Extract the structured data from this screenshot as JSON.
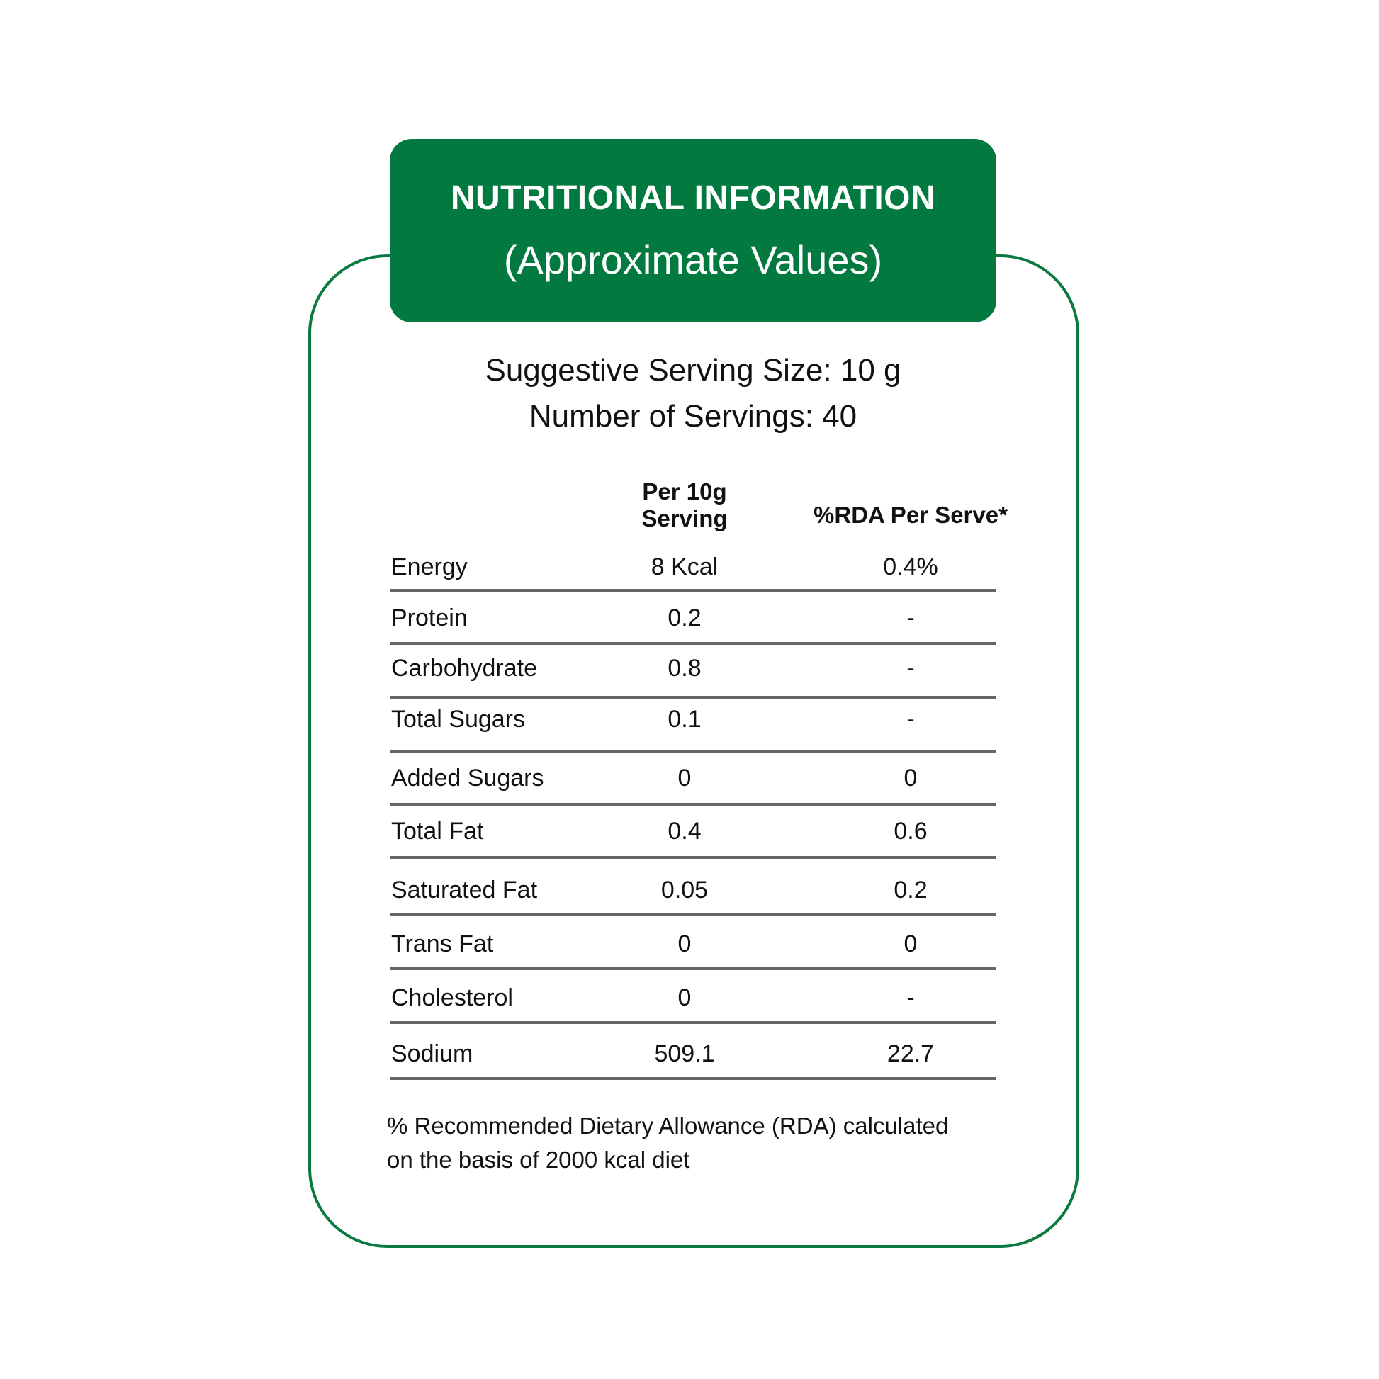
{
  "header": {
    "title": "NUTRITIONAL INFORMATION",
    "subtitle": "(Approximate Values)"
  },
  "serving": {
    "size": "Suggestive Serving Size: 10 g",
    "count": "Number of Servings: 40"
  },
  "table": {
    "columns": [
      "",
      "Per 10g\nServing",
      "%RDA Per Serve*"
    ],
    "col1_line1": "Per 10g",
    "col1_line2": "Serving",
    "col2": "%RDA Per Serve*",
    "rows": [
      {
        "nutrient": "Energy",
        "per_serving": "8 Kcal",
        "rda": "0.4%"
      },
      {
        "nutrient": "Protein",
        "per_serving": "0.2",
        "rda": "-"
      },
      {
        "nutrient": "Carbohydrate",
        "per_serving": "0.8",
        "rda": "-"
      },
      {
        "nutrient": "Total Sugars",
        "per_serving": "0.1",
        "rda": "-"
      },
      {
        "nutrient": "Added Sugars",
        "per_serving": "0",
        "rda": "0"
      },
      {
        "nutrient": "Total Fat",
        "per_serving": "0.4",
        "rda": "0.6"
      },
      {
        "nutrient": "Saturated Fat",
        "per_serving": "0.05",
        "rda": "0.2"
      },
      {
        "nutrient": "Trans Fat",
        "per_serving": "0",
        "rda": "0"
      },
      {
        "nutrient": "Cholesterol",
        "per_serving": "0",
        "rda": "-"
      },
      {
        "nutrient": "Sodium",
        "per_serving": "509.1",
        "rda": "22.7"
      }
    ]
  },
  "footnote": {
    "line1": "% Recommended Dietary Allowance (RDA) calculated",
    "line2": "on the basis of 2000 kcal diet"
  },
  "colors": {
    "brand_green": "#027a3f",
    "border_green": "#0b7a40",
    "rule_gray": "#666666"
  }
}
